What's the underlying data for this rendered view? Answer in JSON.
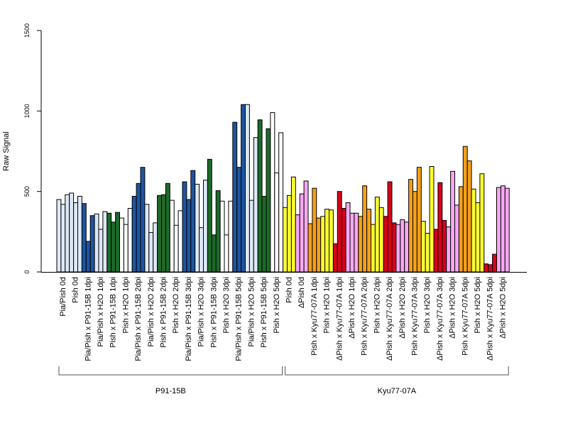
{
  "chart_data": {
    "type": "bar",
    "ylabel": "Raw Signal",
    "ylim": [
      0,
      1500
    ],
    "yticks": [
      "0",
      "500",
      "1000",
      "1500"
    ],
    "grid": false,
    "bar_outline_color": "#000000",
    "colors": {
      "p91_0d": "#dde8f6",
      "p91_mock": "#ffffff",
      "p91_inf_pia": "#1f55a0",
      "p91_inf_pish": "#1d6b2a",
      "kyu_0d_pish": "#ffff33",
      "kyu_0d_dpish": "#f7a8f2",
      "kyu_inf_pish": "#f5a01c",
      "kyu_inf_dpish": "#d8001b",
      "kyu_mock_pish": "#ffff33",
      "kyu_mock_dpish": "#f7a8f2"
    },
    "categories": [
      {
        "label": "Pia/Pish 0d",
        "color": "p91_0d",
        "values": [
          450,
          420,
          480
        ]
      },
      {
        "label": "Pish 0d",
        "color": "p91_0d",
        "values": [
          490,
          430,
          470
        ]
      },
      {
        "label": "Pia/Pish x P91-15B 1dpi",
        "color": "p91_inf_pia",
        "values": [
          425,
          190,
          350
        ]
      },
      {
        "label": "Pia/Pish x H2O 1dpi",
        "color": "p91_0d",
        "values": [
          360,
          265,
          375
        ]
      },
      {
        "label": "Pish x P91-15B 1dpi",
        "color": "p91_inf_pish",
        "values": [
          365,
          310,
          370
        ]
      },
      {
        "label": "Pish x H2O 1dpi",
        "color": "p91_mock",
        "values": [
          335,
          295,
          395
        ]
      },
      {
        "label": "Pia/Pish x P91-15B 2dpi",
        "color": "p91_inf_pia",
        "values": [
          470,
          550,
          650
        ]
      },
      {
        "label": "Pia/Pish x H2O 2dpi",
        "color": "p91_0d",
        "values": [
          420,
          245,
          305
        ]
      },
      {
        "label": "Pish x P91-15B 2dpi",
        "color": "p91_inf_pish",
        "values": [
          475,
          480,
          550
        ]
      },
      {
        "label": "Pish x H2O 2dpi",
        "color": "p91_mock",
        "values": [
          445,
          290,
          380
        ]
      },
      {
        "label": "Pia/Pish x P91-15B 3dpi",
        "color": "p91_inf_pia",
        "values": [
          560,
          450,
          630
        ]
      },
      {
        "label": "Pia/Pish x H2O 3dpi",
        "color": "p91_0d",
        "values": [
          545,
          275,
          570
        ]
      },
      {
        "label": "Pish x P91-15B 3dpi",
        "color": "p91_inf_pish",
        "values": [
          700,
          230,
          505
        ]
      },
      {
        "label": "Pish x H2O 3dpi",
        "color": "p91_mock",
        "values": [
          440,
          230,
          440
        ]
      },
      {
        "label": "Pia/Pish x P91-15B 5dpi",
        "color": "p91_inf_pia",
        "values": [
          930,
          650,
          1040
        ]
      },
      {
        "label": "Pia/Pish x H2O 5dpi",
        "color": "p91_0d",
        "values": [
          1040,
          445,
          835
        ]
      },
      {
        "label": "Pish x P91-15B 5dpi",
        "color": "p91_inf_pish",
        "values": [
          945,
          470,
          890
        ]
      },
      {
        "label": "Pish x H2O 5dpi",
        "color": "p91_mock",
        "values": [
          990,
          615,
          865
        ]
      },
      {
        "label": "Pish 0d",
        "color": "kyu_0d_pish",
        "values": [
          400,
          475,
          590
        ]
      },
      {
        "label": "ΔPish 0d",
        "color": "kyu_0d_dpish",
        "values": [
          355,
          485,
          565
        ]
      },
      {
        "label": "Pish x Kyu77-07A 1dpi",
        "color": "kyu_inf_pish",
        "values": [
          300,
          520,
          335
        ]
      },
      {
        "label": "Pish x H2O 1dpi",
        "color": "kyu_mock_pish",
        "values": [
          345,
          390,
          385
        ]
      },
      {
        "label": "ΔPish x Kyu77-07A 1dpi",
        "color": "kyu_inf_dpish",
        "values": [
          175,
          500,
          395
        ]
      },
      {
        "label": "ΔPish x H2O 1dpi",
        "color": "kyu_mock_dpish",
        "values": [
          430,
          365,
          365
        ]
      },
      {
        "label": "Pish x Kyu77-07A 2dpi",
        "color": "kyu_inf_pish",
        "values": [
          345,
          535,
          390
        ]
      },
      {
        "label": "Pish x H2O 2dpi",
        "color": "kyu_mock_pish",
        "values": [
          295,
          465,
          400
        ]
      },
      {
        "label": "ΔPish x Kyu77-07A 2dpi",
        "color": "kyu_inf_dpish",
        "values": [
          345,
          560,
          305
        ]
      },
      {
        "label": "ΔPish x H2O 2dpi",
        "color": "kyu_mock_dpish",
        "values": [
          295,
          325,
          310
        ]
      },
      {
        "label": "Pish x Kyu77-07A 3dpi",
        "color": "kyu_inf_pish",
        "values": [
          575,
          500,
          650
        ]
      },
      {
        "label": "Pish x H2O 3dpi",
        "color": "kyu_mock_pish",
        "values": [
          315,
          240,
          655
        ]
      },
      {
        "label": "ΔPish x Kyu77-07A 3dpi",
        "color": "kyu_inf_dpish",
        "values": [
          265,
          555,
          320
        ]
      },
      {
        "label": "ΔPish x H2O 3dpi",
        "color": "kyu_mock_dpish",
        "values": [
          280,
          625,
          415
        ]
      },
      {
        "label": "Pish x Kyu77-07A 5dpi",
        "color": "kyu_inf_pish",
        "values": [
          530,
          780,
          690
        ]
      },
      {
        "label": "Pish x H2O 5dpi",
        "color": "kyu_mock_pish",
        "values": [
          515,
          430,
          610
        ]
      },
      {
        "label": "ΔPish x Kyu77-07A 5dpi",
        "color": "kyu_inf_dpish",
        "values": [
          50,
          45,
          110
        ]
      },
      {
        "label": "ΔPish x H2O 5dpi",
        "color": "kyu_mock_dpish",
        "values": [
          525,
          535,
          520
        ]
      }
    ],
    "groups": [
      {
        "label": "P91-15B",
        "first": 0,
        "last": 17
      },
      {
        "label": "Kyu77-07A",
        "first": 18,
        "last": 35
      }
    ]
  }
}
